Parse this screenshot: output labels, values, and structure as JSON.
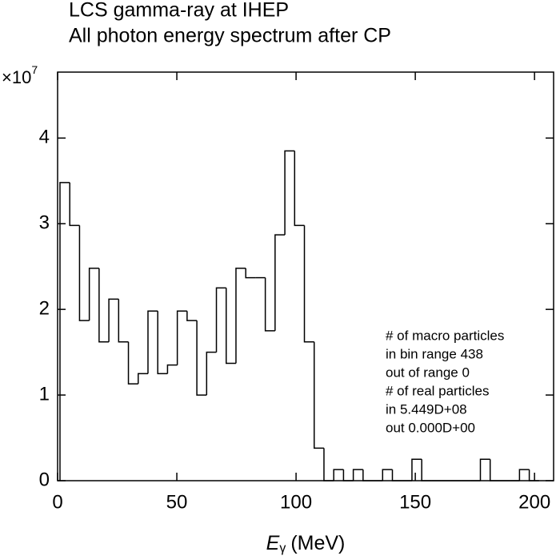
{
  "chart_data": {
    "type": "histogram",
    "title": [
      "LCS gamma-ray at IHEP",
      "All photon energy spectrum after CP"
    ],
    "xlabel": {
      "symbol": "E",
      "subscript": "γ",
      "unit": "(MeV)"
    },
    "y_multiplier": {
      "base": "×10",
      "exponent": "7"
    },
    "color": "#000000",
    "bins": [
      1,
      5.1,
      9.2,
      13.3,
      17.4,
      21.5,
      25.6,
      29.7,
      33.8,
      37.9,
      42,
      46.1,
      50.2,
      54.3,
      58.4,
      62.5,
      66.6,
      70.7,
      74.8,
      78.9,
      83,
      87.1,
      91.2,
      95.3,
      99.4,
      103.5,
      107.6,
      111.7,
      115.8,
      119.9,
      124,
      128.1,
      132.2,
      136.3,
      140.4,
      144.5,
      148.6,
      152.7,
      156.8,
      160.9,
      165,
      169.1,
      173.2,
      177.3,
      181.4,
      185.5,
      189.6,
      193.7,
      197.8,
      201.9
    ],
    "counts": [
      3.48,
      2.98,
      1.87,
      2.48,
      1.62,
      2.12,
      1.62,
      1.13,
      1.25,
      1.98,
      1.25,
      1.35,
      1.98,
      1.87,
      1.0,
      1.5,
      2.25,
      1.37,
      2.48,
      2.37,
      2.37,
      1.75,
      2.87,
      3.85,
      2.98,
      1.62,
      0.38,
      0,
      0.13,
      0,
      0.13,
      0,
      0,
      0.13,
      0,
      0,
      0.25,
      0,
      0,
      0,
      0,
      0,
      0,
      0.25,
      0,
      0,
      0,
      0.13,
      0
    ],
    "xlim": [
      0,
      208
    ],
    "ylim": [
      0,
      4.77
    ],
    "xticks": [
      0,
      50,
      100,
      150,
      200
    ],
    "yticks": [
      0,
      1,
      2,
      3,
      4
    ],
    "annotations": [
      "# of macro particles",
      "in bin range  438",
      "out of range  0",
      "# of real particles",
      "in   5.449D+08",
      "out 0.000D+00"
    ]
  }
}
